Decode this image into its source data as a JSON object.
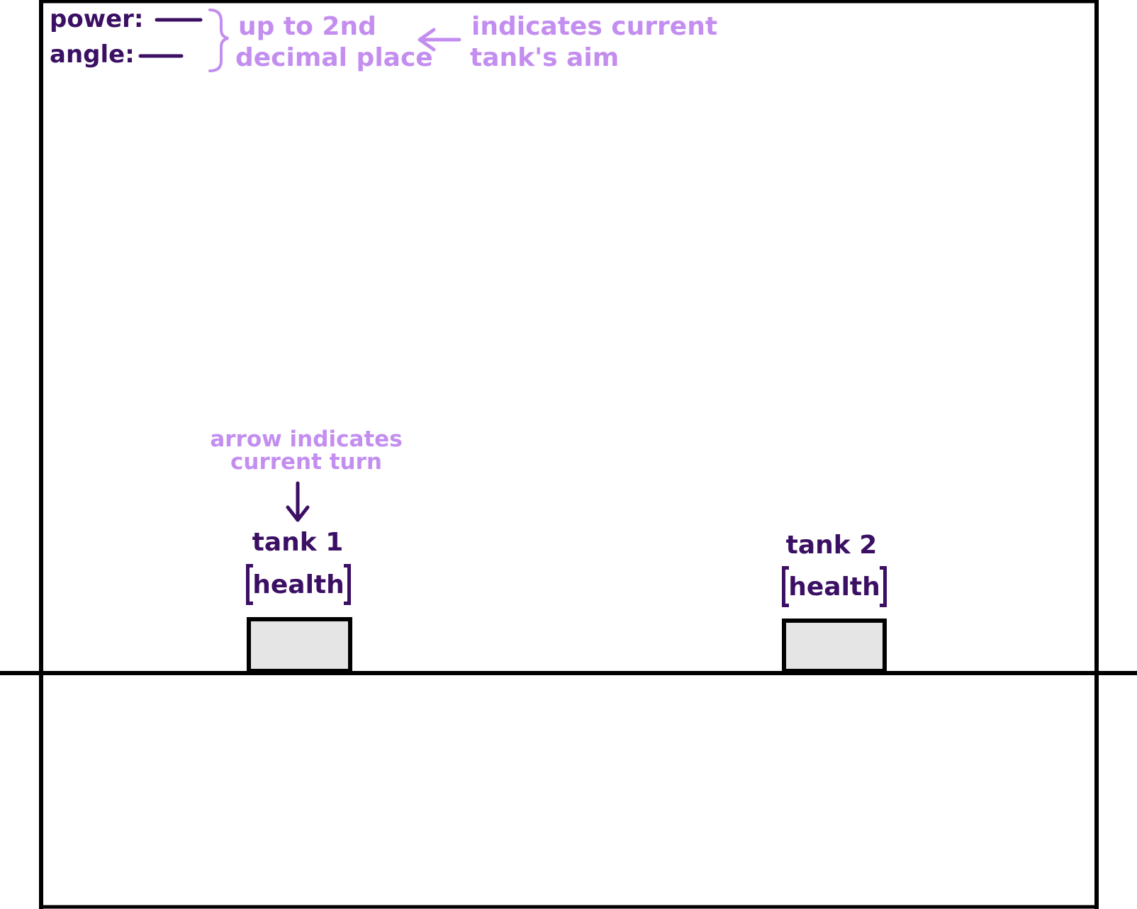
{
  "hud": {
    "power_label": "power:",
    "angle_label": "angle:",
    "precision_note_line1": "up to 2nd",
    "precision_note_line2": "decimal place",
    "aim_note_line1": "indicates current",
    "aim_note_line2": "tank's aim"
  },
  "turn_note": {
    "line1": "arrow indicates",
    "line2": "current turn"
  },
  "tanks": [
    {
      "label": "tank 1",
      "health_label": "health"
    },
    {
      "label": "tank 2",
      "health_label": "health"
    }
  ],
  "colors": {
    "ink": "#3b0f63",
    "annotation": "#c38ef0",
    "frame": "#000000",
    "tank_fill": "#e5e5e5",
    "background": "#ffffff"
  }
}
